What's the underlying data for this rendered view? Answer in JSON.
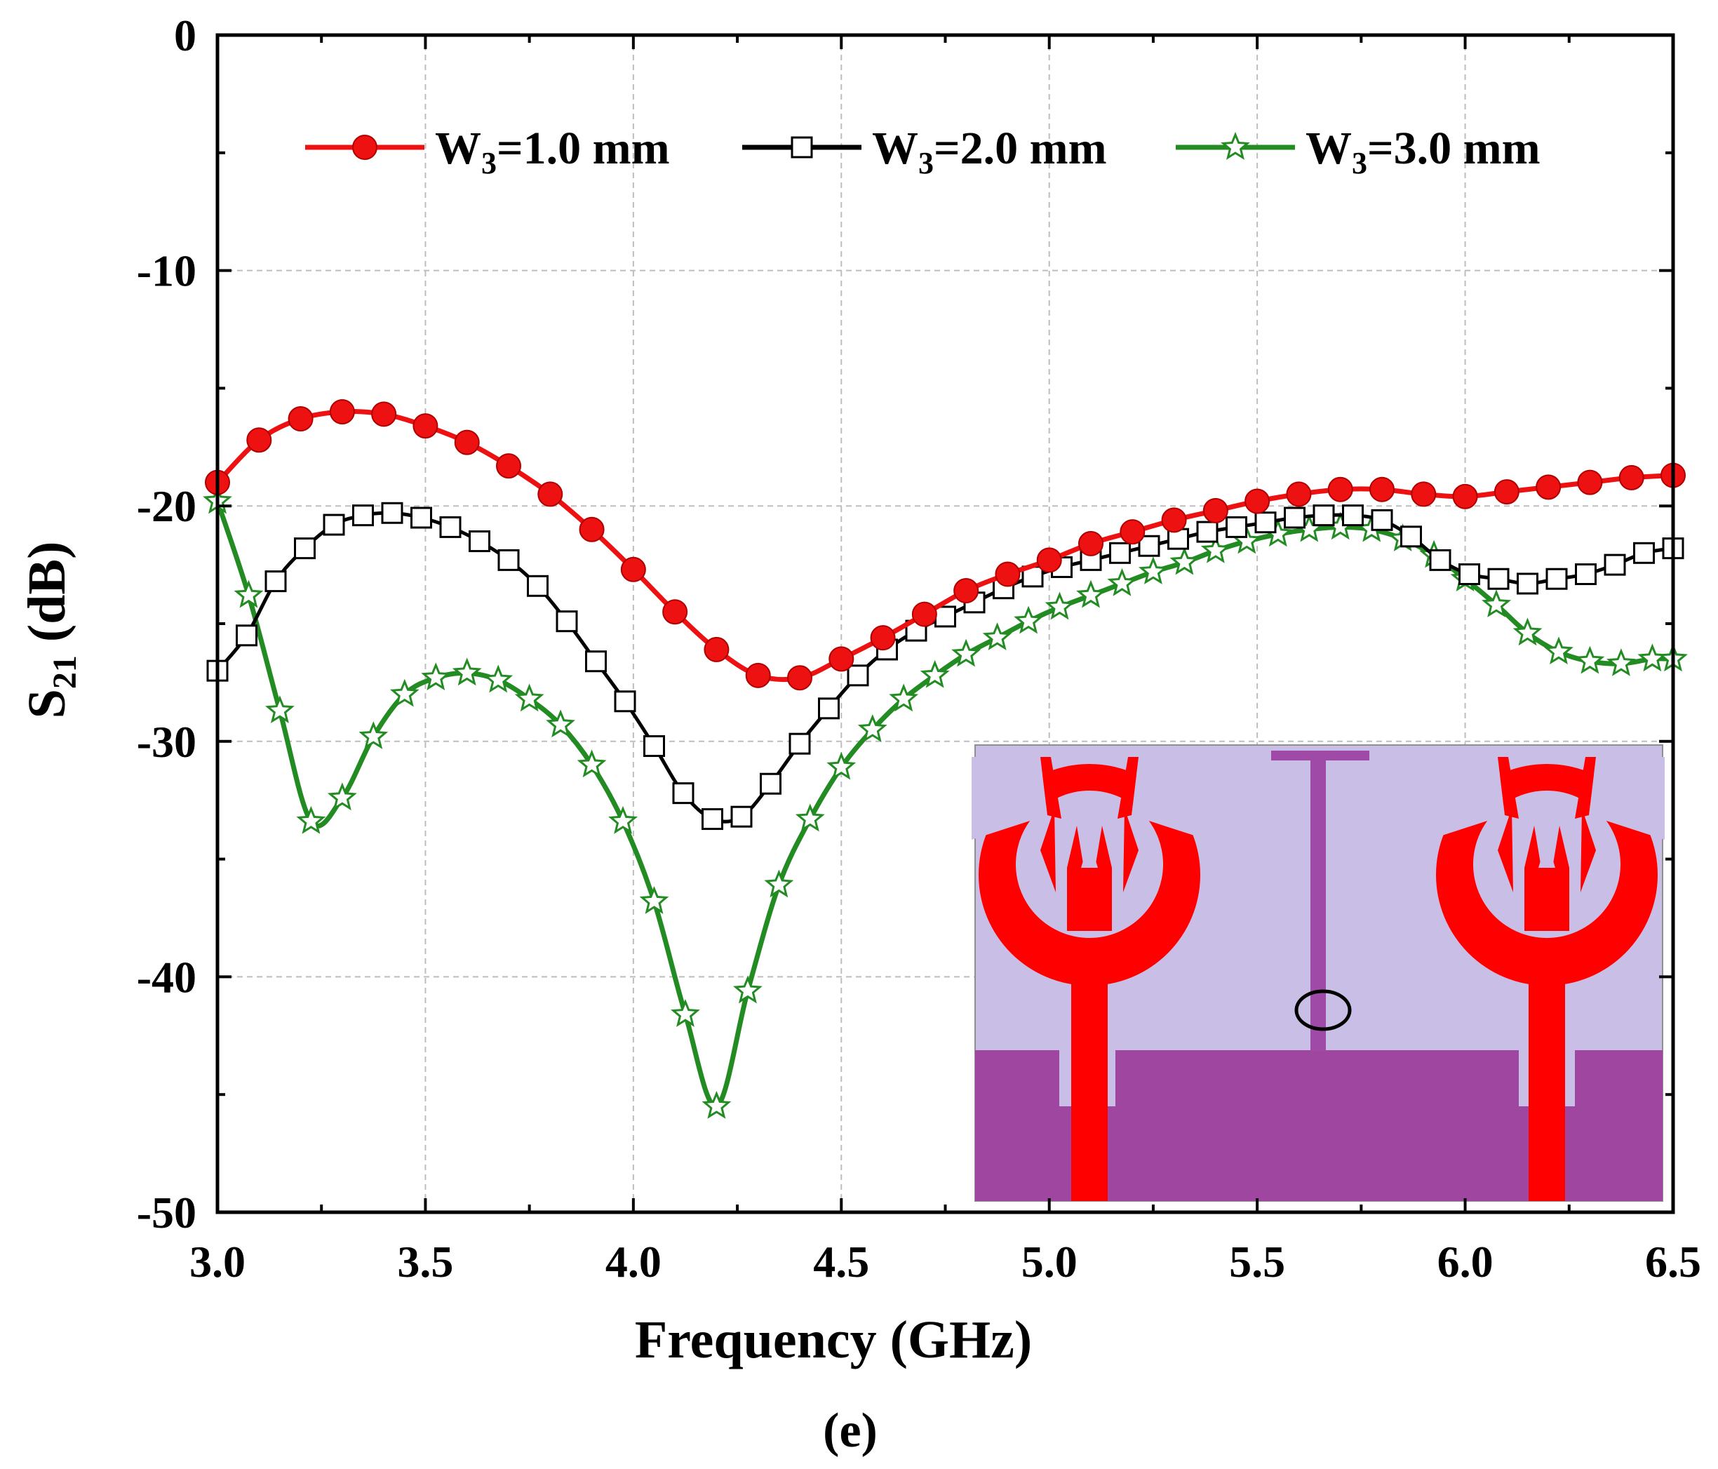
{
  "chart_data": {
    "type": "line",
    "xlabel": "Frequency (GHz)",
    "ylabel_main": "S",
    "ylabel_sub": "21",
    "ylabel_unit": " (dB)",
    "xlim": [
      3.0,
      6.5
    ],
    "ylim": [
      -50,
      0
    ],
    "xticks": [
      3.0,
      3.5,
      4.0,
      4.5,
      5.0,
      5.5,
      6.0,
      6.5
    ],
    "xtick_labels": [
      "3.0",
      "3.5",
      "4.0",
      "4.5",
      "5.0",
      "5.5",
      "6.0",
      "6.5"
    ],
    "yticks": [
      0,
      -10,
      -20,
      -30,
      -40,
      -50
    ],
    "ytick_labels": [
      "0",
      "-10",
      "-20",
      "-30",
      "-40",
      "-50"
    ],
    "grid": true,
    "legend_position": "top",
    "caption": "(e)",
    "series": [
      {
        "name": "W3=1.0 mm",
        "label_main": "W",
        "label_sub": "3",
        "label_rest": "=1.0 mm",
        "color": "#ee1111",
        "marker": "circle",
        "x": [
          3.0,
          3.1,
          3.2,
          3.3,
          3.4,
          3.5,
          3.6,
          3.7,
          3.8,
          3.9,
          4.0,
          4.1,
          4.2,
          4.3,
          4.4,
          4.5,
          4.6,
          4.7,
          4.8,
          4.9,
          5.0,
          5.1,
          5.2,
          5.3,
          5.4,
          5.5,
          5.6,
          5.7,
          5.8,
          5.9,
          6.0,
          6.1,
          6.2,
          6.3,
          6.4,
          6.5
        ],
        "y": [
          -19.0,
          -17.2,
          -16.3,
          -16.0,
          -16.1,
          -16.6,
          -17.3,
          -18.3,
          -19.5,
          -21.0,
          -22.7,
          -24.5,
          -26.1,
          -27.2,
          -27.3,
          -26.5,
          -25.6,
          -24.6,
          -23.6,
          -22.9,
          -22.3,
          -21.6,
          -21.1,
          -20.6,
          -20.2,
          -19.8,
          -19.5,
          -19.3,
          -19.3,
          -19.5,
          -19.6,
          -19.4,
          -19.2,
          -19.0,
          -18.8,
          -18.7
        ]
      },
      {
        "name": "W3=2.0 mm",
        "label_main": "W",
        "label_sub": "3",
        "label_rest": "=2.0 mm",
        "color": "#000000",
        "marker": "square",
        "x": [
          3.0,
          3.07,
          3.14,
          3.21,
          3.28,
          3.35,
          3.42,
          3.49,
          3.56,
          3.63,
          3.7,
          3.77,
          3.84,
          3.91,
          3.98,
          4.05,
          4.12,
          4.19,
          4.26,
          4.33,
          4.4,
          4.47,
          4.54,
          4.61,
          4.68,
          4.75,
          4.82,
          4.89,
          4.96,
          5.03,
          5.1,
          5.17,
          5.24,
          5.31,
          5.38,
          5.45,
          5.52,
          5.59,
          5.66,
          5.73,
          5.8,
          5.87,
          5.94,
          6.01,
          6.08,
          6.15,
          6.22,
          6.29,
          6.36,
          6.43,
          6.5
        ],
        "y": [
          -27.0,
          -25.5,
          -23.2,
          -21.8,
          -20.8,
          -20.4,
          -20.3,
          -20.5,
          -20.9,
          -21.5,
          -22.3,
          -23.4,
          -24.9,
          -26.6,
          -28.3,
          -30.2,
          -32.2,
          -33.3,
          -33.2,
          -31.8,
          -30.1,
          -28.6,
          -27.2,
          -26.1,
          -25.3,
          -24.7,
          -24.1,
          -23.5,
          -23.0,
          -22.6,
          -22.3,
          -22.0,
          -21.7,
          -21.4,
          -21.1,
          -20.9,
          -20.7,
          -20.5,
          -20.4,
          -20.4,
          -20.6,
          -21.3,
          -22.3,
          -22.9,
          -23.1,
          -23.3,
          -23.1,
          -22.9,
          -22.5,
          -22.0,
          -21.8
        ]
      },
      {
        "name": "W3=3.0 mm",
        "label_main": "W",
        "label_sub": "3",
        "label_rest": "=3.0 mm",
        "color": "#228b22",
        "marker": "star",
        "x": [
          3.0,
          3.075,
          3.15,
          3.225,
          3.3,
          3.375,
          3.45,
          3.525,
          3.6,
          3.675,
          3.75,
          3.825,
          3.9,
          3.975,
          4.05,
          4.125,
          4.2,
          4.275,
          4.35,
          4.425,
          4.5,
          4.575,
          4.65,
          4.725,
          4.8,
          4.875,
          4.95,
          5.025,
          5.1,
          5.175,
          5.25,
          5.325,
          5.4,
          5.475,
          5.55,
          5.625,
          5.7,
          5.775,
          5.85,
          5.925,
          6.0,
          6.075,
          6.15,
          6.225,
          6.3,
          6.375,
          6.45,
          6.5
        ],
        "y": [
          -19.8,
          -23.8,
          -28.7,
          -33.4,
          -32.4,
          -29.8,
          -28.0,
          -27.3,
          -27.1,
          -27.4,
          -28.2,
          -29.3,
          -31.0,
          -33.4,
          -36.8,
          -41.6,
          -45.5,
          -40.6,
          -36.1,
          -33.3,
          -31.1,
          -29.5,
          -28.2,
          -27.2,
          -26.3,
          -25.6,
          -24.9,
          -24.3,
          -23.8,
          -23.3,
          -22.8,
          -22.4,
          -21.9,
          -21.5,
          -21.2,
          -21.0,
          -20.9,
          -21.0,
          -21.4,
          -22.1,
          -23.1,
          -24.2,
          -25.4,
          -26.2,
          -26.6,
          -26.7,
          -26.5,
          -26.5
        ]
      }
    ]
  },
  "inset": {
    "description_label": "antenna layout inset",
    "substrate_color": "#c9bfe6",
    "ground_color": "#9e46a0",
    "patch_color": "#ff0000",
    "stub_color": "#a04aa8"
  }
}
